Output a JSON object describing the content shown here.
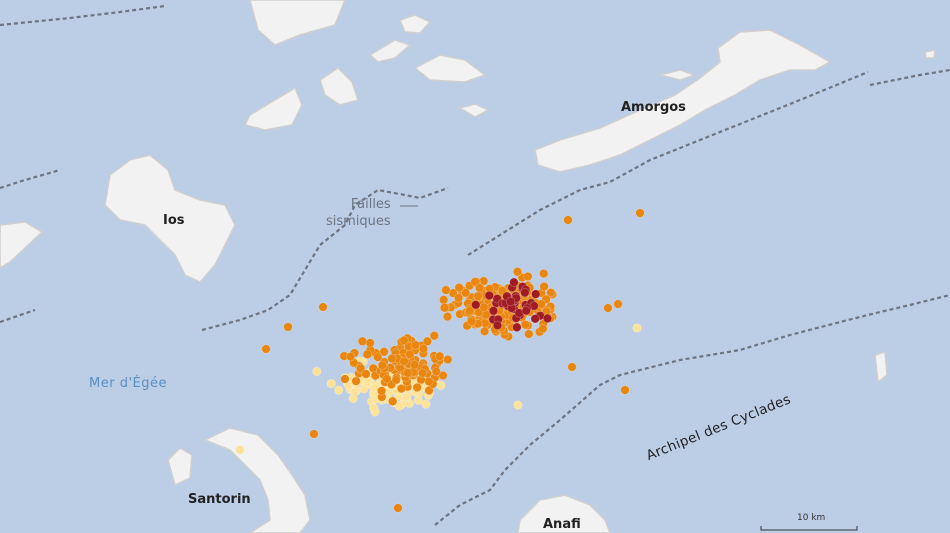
{
  "map": {
    "labels": {
      "amorgos": "Amorgos",
      "ios": "Ios",
      "santorin": "Santorin",
      "anafi": "Anafi",
      "sea": "Mer d'Égée",
      "faults": [
        "Failles",
        "sismiques"
      ],
      "archipelago": "Archipel des Cyclades"
    },
    "scale_bar": "10 km",
    "colors": {
      "sea": "#bccde6",
      "land": "#f2f2f2",
      "land_shadow": "#c9c9c9",
      "fault_line": "#6d7580",
      "quake_light": "#fde29a",
      "quake_medium": "#e8860f",
      "quake_strong": "#a01c24"
    },
    "legend_note": "Quake epicenters shown in three magnitude classes: light yellow, orange, dark red"
  }
}
